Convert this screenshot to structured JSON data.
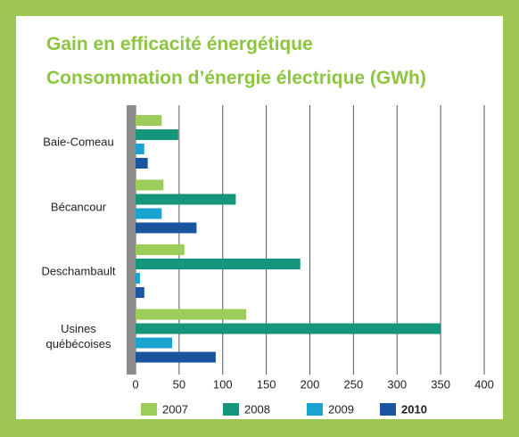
{
  "chart_data": {
    "type": "bar",
    "orientation": "horizontal",
    "title": "Gain en efficacité énergétique",
    "subtitle": "Consommation d’énergie électrique (GWh)",
    "categories": [
      "Baie-Comeau",
      "Bécancour",
      "Deschambault",
      "Usines québécoises"
    ],
    "series": [
      {
        "name": "2007",
        "color": "#9ccc5a",
        "values": [
          30,
          32,
          56,
          127
        ]
      },
      {
        "name": "2008",
        "color": "#14967c",
        "values": [
          49,
          115,
          189,
          350
        ]
      },
      {
        "name": "2009",
        "color": "#1aa3d1",
        "values": [
          10,
          30,
          5,
          42
        ]
      },
      {
        "name": "2010",
        "color": "#1a55a0",
        "values": [
          14,
          70,
          10,
          92
        ]
      }
    ],
    "xlim": [
      0,
      400
    ],
    "xticks": [
      0,
      50,
      100,
      150,
      200,
      250,
      300,
      350,
      400
    ],
    "grid": true
  }
}
